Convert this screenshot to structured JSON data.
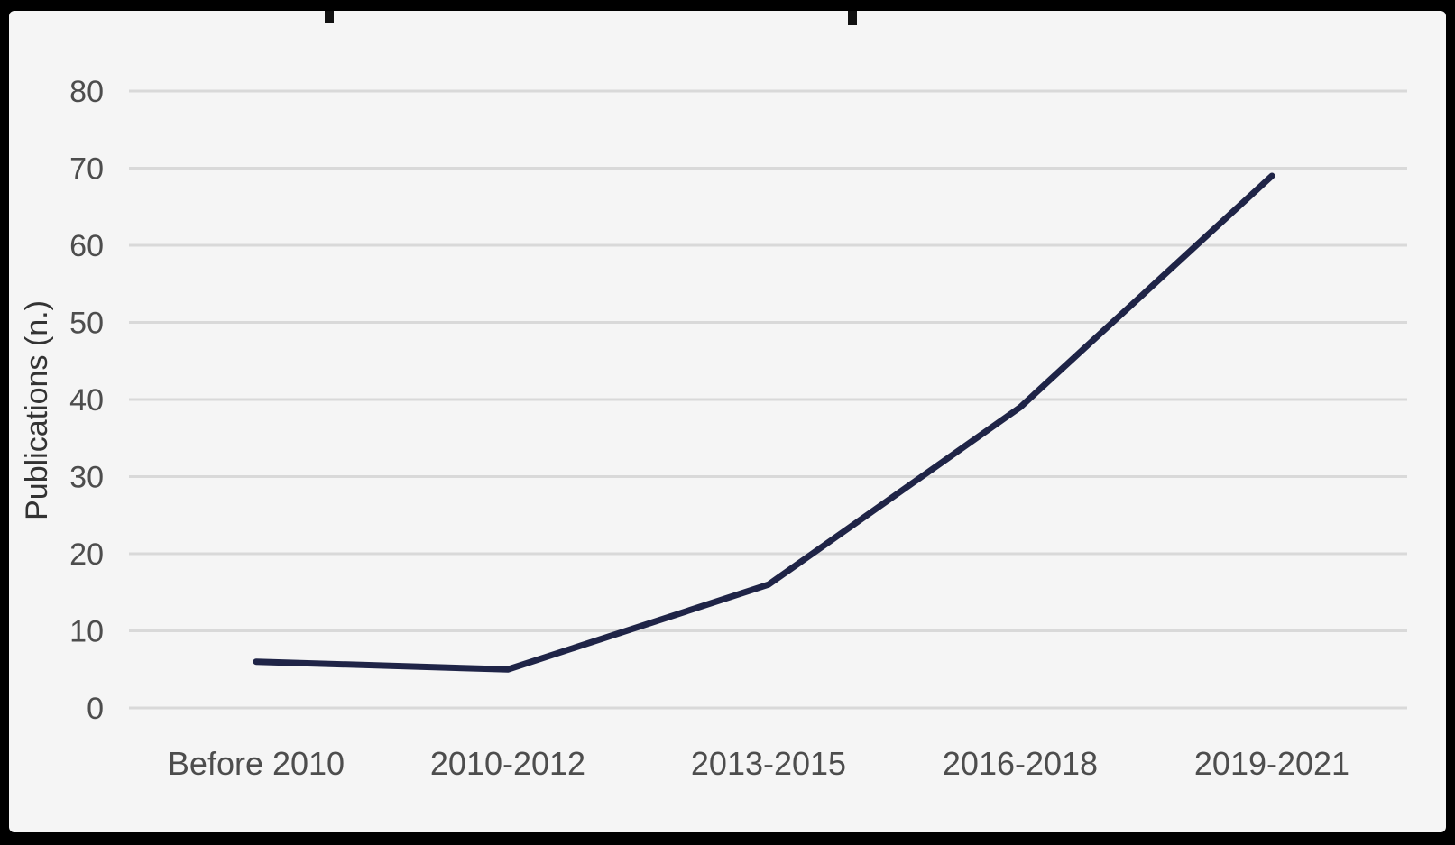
{
  "chart_data": {
    "type": "line",
    "title": "",
    "xlabel": "",
    "ylabel": "Publications (n.)",
    "categories": [
      "Before 2010",
      "2010-2012",
      "2013-2015",
      "2016-2018",
      "2019-2021"
    ],
    "series": [
      {
        "values": [
          6,
          5,
          16,
          39,
          69
        ]
      }
    ],
    "ylim": [
      0,
      80
    ],
    "yticks": [
      0,
      10,
      20,
      30,
      40,
      50,
      60,
      70,
      80
    ],
    "grid": "horizontal",
    "legend": "none",
    "colors": {
      "background": "#f5f5f5",
      "line": "#1f2447",
      "grid": "#d9d9d9",
      "frame": "#000000"
    }
  }
}
